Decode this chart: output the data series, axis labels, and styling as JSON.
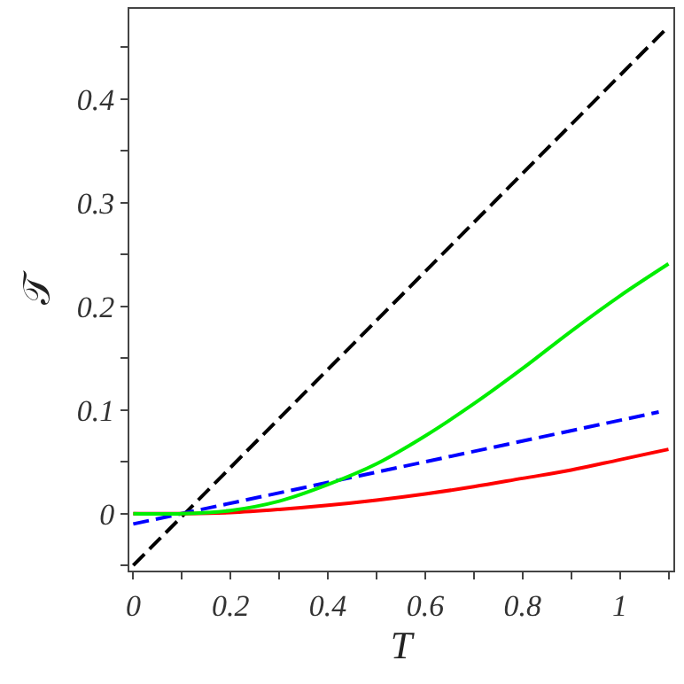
{
  "chart_data": {
    "type": "line",
    "xlabel": "T",
    "ylabel": "𝒯",
    "xlim": [
      -0.008,
      1.11
    ],
    "ylim": [
      -0.055,
      0.487
    ],
    "xticks": [
      0,
      {
        "value": 0.1,
        "label": null
      },
      0.2,
      {
        "value": 0.3,
        "label": null
      },
      0.4,
      {
        "value": 0.5,
        "label": null
      },
      0.6,
      {
        "value": 0.7,
        "label": null
      },
      0.8,
      {
        "value": 0.9,
        "label": null
      },
      1,
      {
        "value": 1.1,
        "label": null
      }
    ],
    "yticks": [
      {
        "value": -0.05,
        "label": null
      },
      0,
      {
        "value": 0.05,
        "label": null
      },
      0.1,
      {
        "value": 0.15,
        "label": null
      },
      0.2,
      {
        "value": 0.25,
        "label": null
      },
      0.3,
      {
        "value": 0.35,
        "label": null
      },
      0.4,
      {
        "value": 0.45,
        "label": null
      }
    ],
    "marker": "none",
    "series": [
      {
        "color": "#000000",
        "line_style": "dashed",
        "x": [
          0,
          1.1
        ],
        "values": [
          -0.05,
          0.47
        ]
      },
      {
        "color": "#0000ff",
        "line_style": "dashed",
        "x": [
          0,
          1.08
        ],
        "values": [
          -0.01,
          0.098
        ]
      },
      {
        "color": "#ff0000",
        "line_style": "solid",
        "x": [
          0,
          0.1,
          0.2,
          0.3,
          0.4,
          0.5,
          0.6,
          0.7,
          0.8,
          0.9,
          1.0,
          1.1
        ],
        "values": [
          0,
          0,
          0.001,
          0.004,
          0.008,
          0.013,
          0.019,
          0.026,
          0.034,
          0.042,
          0.052,
          0.062
        ]
      },
      {
        "color": "#00ee00",
        "line_style": "solid",
        "x": [
          0,
          0.1,
          0.2,
          0.3,
          0.4,
          0.5,
          0.6,
          0.7,
          0.8,
          0.9,
          1.0,
          1.1
        ],
        "values": [
          0,
          0,
          0.003,
          0.012,
          0.028,
          0.048,
          0.075,
          0.106,
          0.14,
          0.176,
          0.21,
          0.241
        ]
      }
    ]
  }
}
